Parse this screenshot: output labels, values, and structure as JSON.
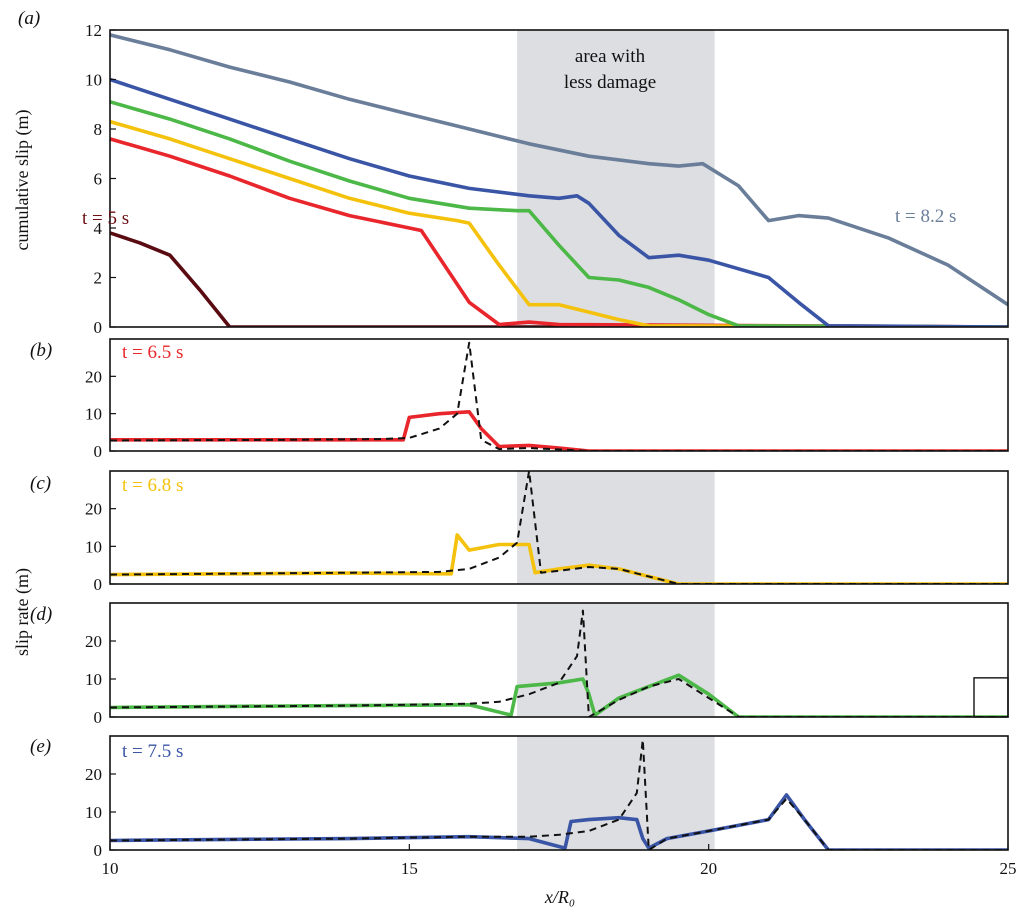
{
  "chart_data": [
    {
      "panel": "a",
      "type": "line",
      "ylabel": "cumulative slip (m)",
      "xlim": [
        10,
        25
      ],
      "ylim": [
        0,
        12
      ],
      "yticks": [
        0,
        2,
        4,
        6,
        8,
        10,
        12
      ],
      "shaded_region": {
        "x": [
          16.8,
          20.1
        ],
        "label_line1": "area with",
        "label_line2": "less damage"
      },
      "annotations": [
        {
          "text": "t = 5 s",
          "color": "#6b0f14"
        },
        {
          "text": "t = 8.2 s",
          "color": "#6a7e9a"
        }
      ],
      "series": [
        {
          "color": "#5a0b12",
          "x": [
            10,
            10.5,
            11,
            11.5,
            12,
            25
          ],
          "values": [
            3.8,
            3.4,
            2.9,
            1.5,
            0,
            0
          ]
        },
        {
          "color": "#e8262b",
          "x": [
            10,
            11,
            12,
            13,
            14,
            15,
            15.2,
            16,
            16.5,
            17,
            17.5,
            25
          ],
          "values": [
            7.6,
            6.9,
            6.1,
            5.2,
            4.5,
            4.0,
            3.9,
            1.0,
            0.1,
            0.2,
            0.1,
            0
          ]
        },
        {
          "color": "#f4c20d",
          "x": [
            10,
            11,
            12,
            13,
            14,
            15,
            15.8,
            16,
            16.5,
            17,
            17.5,
            18,
            18.5,
            19,
            25
          ],
          "values": [
            8.3,
            7.6,
            6.8,
            6.0,
            5.2,
            4.6,
            4.3,
            4.2,
            2.5,
            0.9,
            0.9,
            0.6,
            0.3,
            0.05,
            0
          ]
        },
        {
          "color": "#4cb847",
          "x": [
            10,
            11,
            12,
            13,
            14,
            15,
            16,
            16.8,
            17,
            17.5,
            18,
            18.5,
            19,
            19.5,
            20,
            20.5,
            25
          ],
          "values": [
            9.1,
            8.4,
            7.6,
            6.7,
            5.9,
            5.2,
            4.8,
            4.7,
            4.7,
            3.3,
            2.0,
            1.9,
            1.6,
            1.1,
            0.5,
            0.05,
            0
          ]
        },
        {
          "color": "#3a55a6",
          "x": [
            10,
            11,
            12,
            13,
            14,
            15,
            16,
            17,
            17.5,
            17.8,
            18,
            18.5,
            19,
            19.5,
            20,
            21,
            21.5,
            22,
            25
          ],
          "values": [
            10.0,
            9.2,
            8.4,
            7.6,
            6.8,
            6.1,
            5.6,
            5.3,
            5.2,
            5.3,
            5.0,
            3.7,
            2.8,
            2.9,
            2.7,
            2.0,
            1.0,
            0.05,
            0
          ]
        },
        {
          "color": "#6a7e9a",
          "x": [
            10,
            11,
            12,
            13,
            14,
            15,
            16,
            17,
            18,
            19,
            19.5,
            19.9,
            20.5,
            21,
            21.5,
            22,
            23,
            24,
            25
          ],
          "values": [
            11.8,
            11.2,
            10.5,
            9.9,
            9.2,
            8.6,
            8.0,
            7.4,
            6.9,
            6.6,
            6.5,
            6.6,
            5.7,
            4.3,
            4.5,
            4.4,
            3.6,
            2.5,
            0.9
          ]
        }
      ]
    },
    {
      "panel": "b",
      "type": "line",
      "xlim": [
        10,
        25
      ],
      "ylim": [
        0,
        30
      ],
      "yticks": [
        0,
        10,
        20
      ],
      "annotation": {
        "text": "t = 6.5 s",
        "color": "#e8262b"
      },
      "series": [
        {
          "color": "#e8262b",
          "x": [
            10,
            12,
            14,
            14.9,
            15,
            15.5,
            16,
            16.2,
            16.5,
            17,
            17.5,
            18,
            25
          ],
          "values": [
            3,
            3,
            3,
            3,
            9,
            10,
            10.5,
            6,
            1.2,
            1.5,
            0.8,
            0,
            0
          ]
        },
        {
          "color": "#111111",
          "dashed": true,
          "x": [
            10,
            13,
            14.5,
            15,
            15.5,
            15.8,
            16,
            16.2,
            16.5,
            17,
            18,
            25
          ],
          "values": [
            2.8,
            3,
            3.2,
            3.5,
            6,
            10,
            29,
            3,
            0.5,
            0.8,
            0,
            0
          ]
        }
      ]
    },
    {
      "panel": "c",
      "type": "line",
      "xlim": [
        10,
        25
      ],
      "ylim": [
        0,
        30
      ],
      "yticks": [
        0,
        10,
        20
      ],
      "annotation": {
        "text": "t = 6.8 s",
        "color": "#f4c20d"
      },
      "series": [
        {
          "color": "#f4c20d",
          "x": [
            10,
            12,
            14,
            15.7,
            15.8,
            16,
            16.5,
            17,
            17.1,
            17.5,
            18,
            18.5,
            19,
            19.5,
            25
          ],
          "values": [
            2.5,
            2.7,
            2.9,
            2.7,
            13,
            9,
            10.5,
            10.5,
            3,
            4,
            5,
            4,
            2,
            0,
            0
          ]
        },
        {
          "color": "#111111",
          "dashed": true,
          "x": [
            10,
            14,
            15.5,
            16,
            16.5,
            16.8,
            17,
            17.2,
            17.5,
            18,
            18.5,
            19,
            19.5,
            25
          ],
          "values": [
            2.5,
            3,
            3.2,
            4,
            7,
            11,
            30,
            3,
            3.5,
            4.5,
            4,
            2,
            0,
            0
          ]
        }
      ]
    },
    {
      "panel": "d",
      "type": "line",
      "ylabel": "slip rate (m)",
      "xlim": [
        10,
        25
      ],
      "ylim": [
        0,
        30
      ],
      "yticks": [
        0,
        10,
        20
      ],
      "series": [
        {
          "color": "#4cb847",
          "x": [
            10,
            12,
            14,
            16,
            16.7,
            16.8,
            17.5,
            17.9,
            18,
            18.1,
            18.5,
            19,
            19.5,
            20,
            20.5,
            25
          ],
          "values": [
            2.5,
            2.8,
            3,
            3.2,
            0.5,
            8,
            9,
            10,
            6,
            0.5,
            5,
            8,
            11,
            6,
            0,
            0
          ]
        },
        {
          "color": "#111111",
          "dashed": true,
          "x": [
            10,
            14,
            16,
            16.5,
            17,
            17.5,
            17.8,
            17.9,
            18,
            18.5,
            19,
            19.5,
            20,
            20.5,
            25
          ],
          "values": [
            2.5,
            3,
            3.5,
            4,
            6,
            9,
            16,
            28,
            0,
            4.5,
            8,
            10,
            5,
            0,
            0
          ]
        }
      ]
    },
    {
      "panel": "e",
      "type": "line",
      "xlabel": "x/R₀",
      "xlim": [
        10,
        25
      ],
      "ylim": [
        0,
        30
      ],
      "yticks": [
        0,
        10,
        20
      ],
      "xticks": [
        10,
        15,
        20,
        25
      ],
      "annotation": {
        "text": "t = 7.5 s",
        "color": "#3a55a6"
      },
      "series": [
        {
          "color": "#3a55a6",
          "x": [
            10,
            12,
            14,
            16,
            17,
            17.6,
            17.7,
            18,
            18.5,
            18.8,
            18.9,
            19,
            19.3,
            20,
            21,
            21.3,
            21.6,
            22,
            25
          ],
          "values": [
            2.5,
            2.8,
            3,
            3.5,
            3,
            0.5,
            7.5,
            8,
            8.5,
            8,
            3,
            0.5,
            3,
            5,
            8,
            14.5,
            8,
            0,
            0
          ]
        },
        {
          "color": "#111111",
          "dashed": true,
          "x": [
            10,
            14,
            16,
            17,
            17.5,
            18,
            18.5,
            18.8,
            18.9,
            19,
            19.3,
            20,
            21,
            21.3,
            21.6,
            22,
            25
          ],
          "values": [
            2.5,
            3,
            3.5,
            3.5,
            4,
            5,
            8,
            15,
            29,
            0,
            3,
            5,
            8,
            13.5,
            8,
            0,
            0
          ]
        }
      ]
    }
  ],
  "panel_labels": [
    "(a)",
    "(b)",
    "(c)",
    "(d)",
    "(e)"
  ]
}
